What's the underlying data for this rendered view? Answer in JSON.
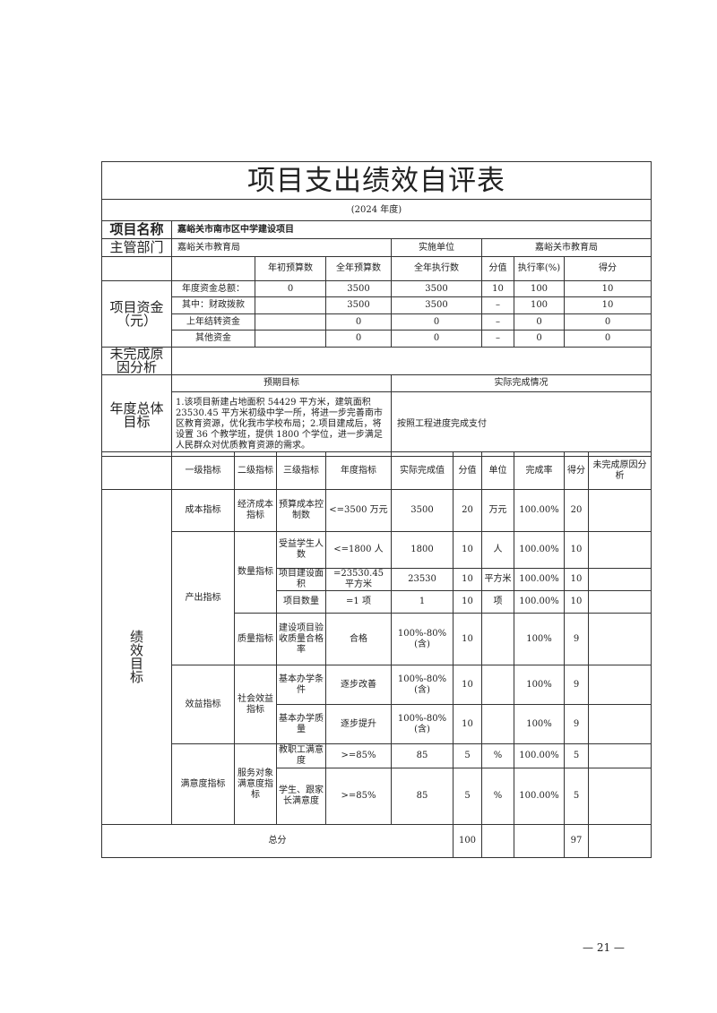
{
  "header": {
    "title": "项目支出绩效自评表",
    "year": "(2024 年度)"
  },
  "project": {
    "name_label": "项目名称",
    "name": "嘉峪关市南市区中学建设项目",
    "dept_label": "主管部门",
    "dept": "嘉峪关市教育局",
    "impl_label": "实施单位",
    "impl": "嘉峪关市教育局"
  },
  "funds": {
    "label": "项目资金（元）",
    "headers": [
      "年初预算数",
      "全年预算数",
      "全年执行数",
      "分值",
      "执行率(%)",
      "得分"
    ],
    "rows": [
      [
        "年度资金总额：",
        "0",
        "3500",
        "3500",
        "10",
        "100",
        "10"
      ],
      [
        "其中：财政拨款",
        "",
        "3500",
        "3500",
        "–",
        "100",
        "10"
      ],
      [
        "上年结转资金",
        "",
        "0",
        "0",
        "–",
        "0",
        "0"
      ],
      [
        "其他资金",
        "",
        "0",
        "0",
        "–",
        "0",
        "0"
      ]
    ]
  },
  "unfinished_label": "未完成原因分析",
  "overall": {
    "label": "年度总体目标",
    "expected_header": "预期目标",
    "actual_header": "实际完成情况",
    "expected": "1.该项目新建占地面积 54429 平方米，建筑面积 23530.45 平方米初级中学一所，将进一步完善南市区教育资源，优化我市学校布局；2.项目建成后，将设置 36 个教学班，提供 1800 个学位，进一步满足人民群众对优质教育资源的需求。",
    "actual": "按照工程进度完成支付"
  },
  "perf": {
    "label": "绩效目标",
    "headers": [
      "一级指标",
      "二级指标",
      "三级指标",
      "年度指标",
      "实际完成值",
      "分值",
      "单位",
      "完成率",
      "得分",
      "未完成原因分析"
    ],
    "rows": [
      {
        "l1": "成本指标",
        "l2": "经济成本指标",
        "l3": "预算成本控制数",
        "target": "<=3500 万元",
        "actual": "3500",
        "score": "20",
        "unit": "万元",
        "rate": "100.00%",
        "got": "20",
        "reason": ""
      },
      {
        "l1": "产出指标",
        "l2": "数量指标",
        "l3": "受益学生人数",
        "target": "<=1800 人",
        "actual": "1800",
        "score": "10",
        "unit": "人",
        "rate": "100.00%",
        "got": "10",
        "reason": ""
      },
      {
        "l3": "项目建设面积",
        "target": "=23530.45 平方米",
        "actual": "23530",
        "score": "10",
        "unit": "平方米",
        "rate": "100.00%",
        "got": "10",
        "reason": ""
      },
      {
        "l3": "项目数量",
        "target": "=1 项",
        "actual": "1",
        "score": "10",
        "unit": "项",
        "rate": "100.00%",
        "got": "10",
        "reason": ""
      },
      {
        "l2": "质量指标",
        "l3": "建设项目验收质量合格率",
        "target": "合格",
        "actual": "100%-80%(含)",
        "score": "10",
        "unit": "",
        "rate": "100%",
        "got": "9",
        "reason": ""
      },
      {
        "l1": "效益指标",
        "l2": "社会效益指标",
        "l3": "基本办学条件",
        "target": "逐步改善",
        "actual": "100%-80%(含)",
        "score": "10",
        "unit": "",
        "rate": "100%",
        "got": "9",
        "reason": ""
      },
      {
        "l3": "基本办学质量",
        "target": "逐步提升",
        "actual": "100%-80%(含)",
        "score": "10",
        "unit": "",
        "rate": "100%",
        "got": "9",
        "reason": ""
      },
      {
        "l1": "满意度指标",
        "l2": "服务对象满意度指标",
        "l3": "教职工满意度",
        "target": ">=85%",
        "actual": "85",
        "score": "5",
        "unit": "%",
        "rate": "100.00%",
        "got": "5",
        "reason": ""
      },
      {
        "l3": "学生、跟家长满意度",
        "target": ">=85%",
        "actual": "85",
        "score": "5",
        "unit": "%",
        "rate": "100.00%",
        "got": "5",
        "reason": ""
      }
    ]
  },
  "total": {
    "label": "总分",
    "score": "100",
    "got": "97"
  },
  "page_number": "— 21 —"
}
